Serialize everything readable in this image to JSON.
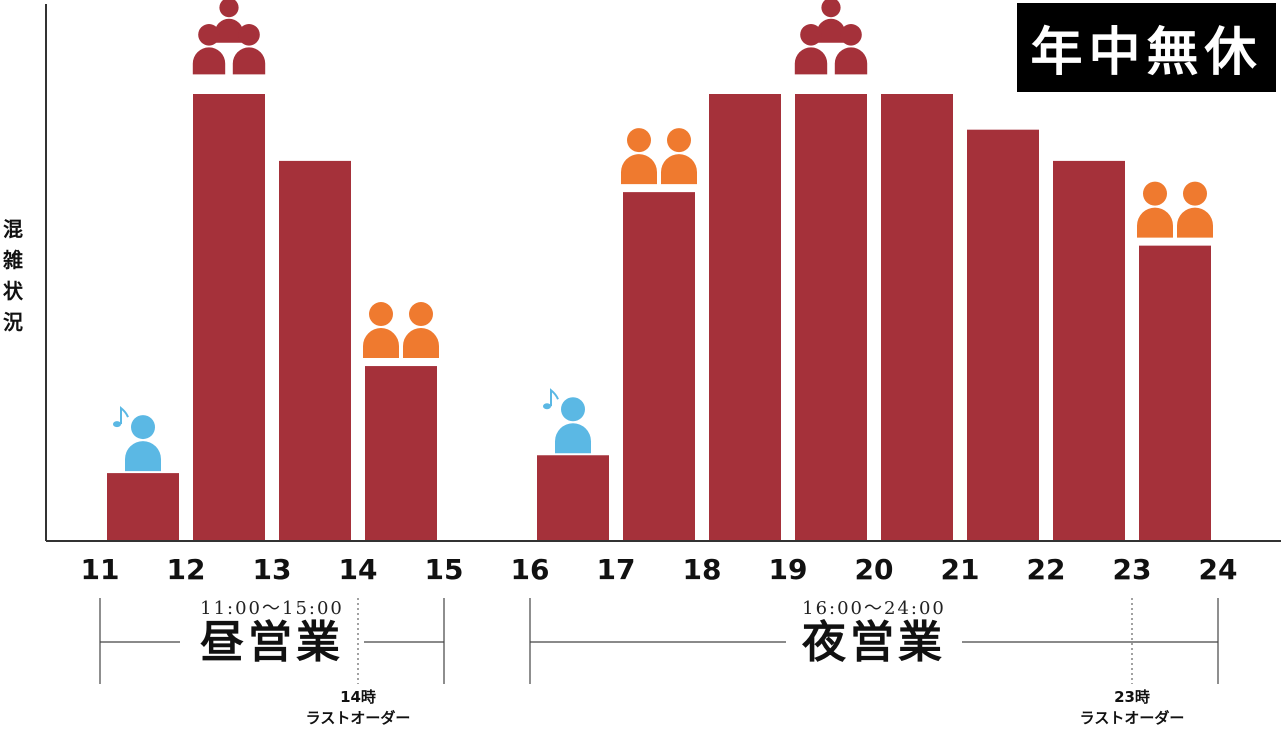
{
  "badge": "年中無休",
  "chart_data": {
    "type": "bar",
    "ylabel": "混雑状況",
    "x_ticks": [
      "11",
      "12",
      "13",
      "14",
      "15",
      "16",
      "17",
      "18",
      "19",
      "20",
      "21",
      "22",
      "23",
      "24"
    ],
    "bars": [
      {
        "start": 11,
        "end": 12,
        "value": 15,
        "crowd": "few"
      },
      {
        "start": 12,
        "end": 13,
        "value": 100,
        "crowd": "many"
      },
      {
        "start": 13,
        "end": 14,
        "value": 85,
        "crowd": null
      },
      {
        "start": 14,
        "end": 15,
        "value": 39,
        "crowd": "some"
      },
      {
        "start": 16,
        "end": 17,
        "value": 19,
        "crowd": "few"
      },
      {
        "start": 17,
        "end": 18,
        "value": 78,
        "crowd": "some"
      },
      {
        "start": 18,
        "end": 19,
        "value": 100,
        "crowd": null
      },
      {
        "start": 19,
        "end": 20,
        "value": 100,
        "crowd": "many"
      },
      {
        "start": 20,
        "end": 21,
        "value": 100,
        "crowd": null
      },
      {
        "start": 21,
        "end": 22,
        "value": 92,
        "crowd": null
      },
      {
        "start": 22,
        "end": 23,
        "value": 85,
        "crowd": null
      },
      {
        "start": 23,
        "end": 24,
        "value": 66,
        "crowd": "some"
      }
    ],
    "ylim": [
      0,
      120
    ],
    "bar_color": "#a5313a",
    "crowd_colors": {
      "few": "#5bb8e4",
      "some": "#ef7a2f",
      "many": "#a5313a"
    }
  },
  "sessions": [
    {
      "name": "昼営業",
      "time": "11:00〜15:00",
      "from": 11,
      "to": 15,
      "last_order_hour": 14,
      "last_order_time": "14時",
      "last_order_label": "ラストオーダー"
    },
    {
      "name": "夜営業",
      "time": "16:00〜24:00",
      "from": 16,
      "to": 24,
      "last_order_hour": 23,
      "last_order_time": "23時",
      "last_order_label": "ラストオーダー"
    }
  ]
}
